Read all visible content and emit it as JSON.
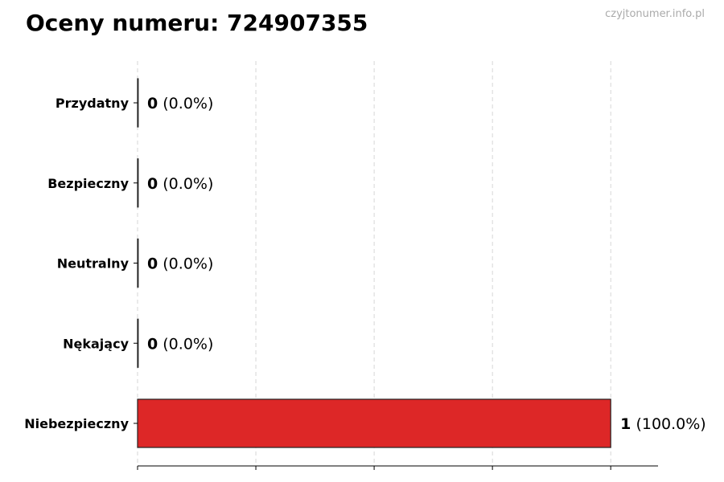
{
  "title": "Oceny numeru: 724907355",
  "watermark": "czyjtonumer.info.pl",
  "chart_data": {
    "type": "bar",
    "orientation": "horizontal",
    "title": "Oceny numeru: 724907355",
    "categories": [
      "Przydatny",
      "Bezpieczny",
      "Neutralny",
      "Nękający",
      "Niebezpieczny"
    ],
    "values": [
      0,
      0,
      0,
      0,
      1
    ],
    "value_labels": [
      {
        "count": "0",
        "pct": "(0.0%)"
      },
      {
        "count": "0",
        "pct": "(0.0%)"
      },
      {
        "count": "0",
        "pct": "(0.0%)"
      },
      {
        "count": "0",
        "pct": "(0.0%)"
      },
      {
        "count": "1",
        "pct": "(100.0%)"
      }
    ],
    "colors": [
      "#dd2727",
      "#dd2727",
      "#dd2727",
      "#dd2727",
      "#dd2727"
    ],
    "xlim": [
      0,
      1.1
    ],
    "xticks": [
      0,
      0.25,
      0.5,
      0.75,
      1
    ],
    "xtick_labels_shown": false,
    "grid": "x dashed",
    "xlabel": "",
    "ylabel": ""
  }
}
